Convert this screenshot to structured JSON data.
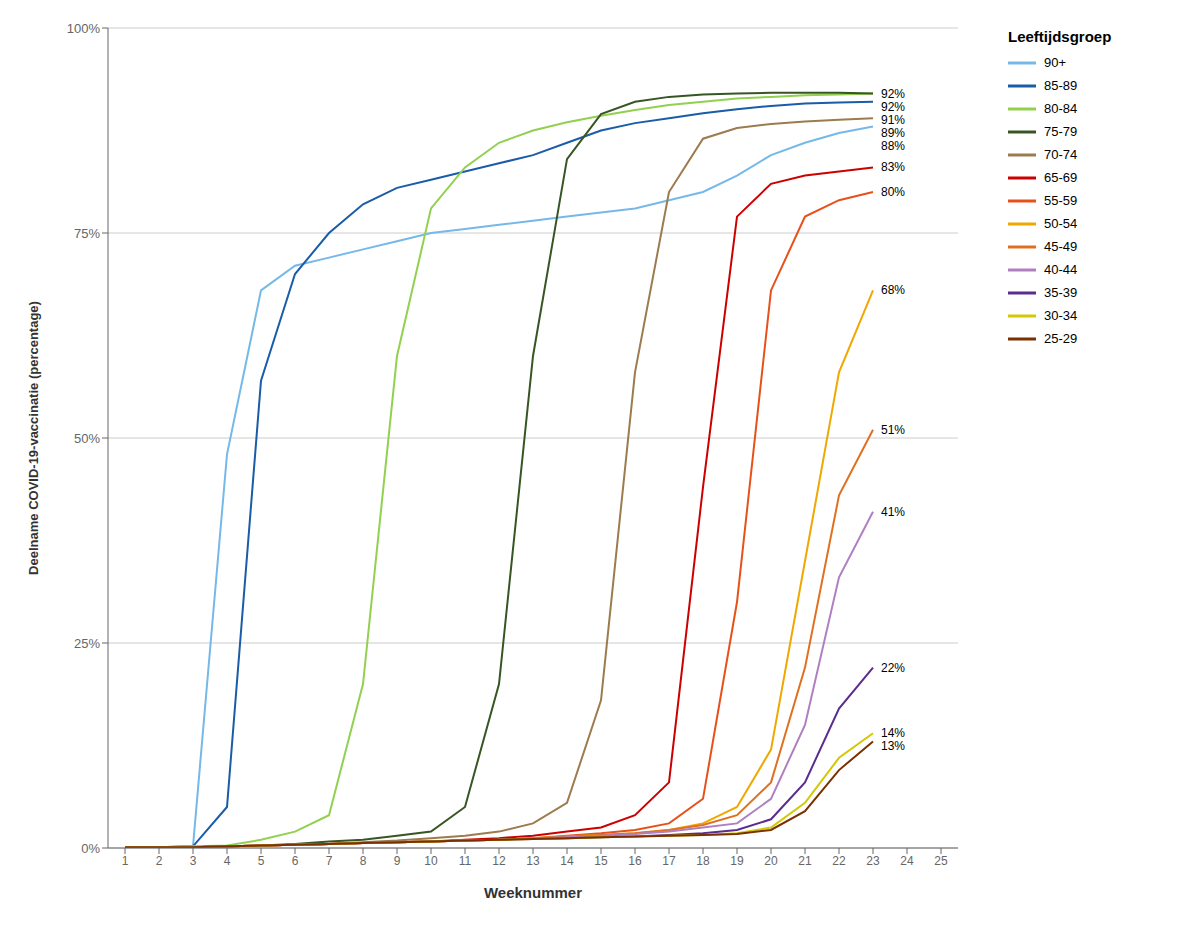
{
  "chart_data": {
    "type": "line",
    "x_label": "Weeknummer",
    "y_label": "Deelname COVID-19-vaccinatie (percentage)",
    "legend_title": "Leeftijdsgroep",
    "legend": "right",
    "grid": true,
    "xlim": [
      0.5,
      25.5
    ],
    "xticks": [
      1,
      2,
      3,
      4,
      5,
      6,
      7,
      8,
      9,
      10,
      11,
      12,
      13,
      14,
      15,
      16,
      17,
      18,
      19,
      20,
      21,
      22,
      23,
      24,
      25
    ],
    "ylim": [
      0,
      1.0
    ],
    "yticks": [
      {
        "value": 0,
        "label": "0%"
      },
      {
        "value": 0.25,
        "label": "25%"
      },
      {
        "value": 0.5,
        "label": "50%"
      },
      {
        "value": 0.75,
        "label": "75%"
      },
      {
        "value": 1.0,
        "label": "100%"
      }
    ],
    "x": [
      1,
      2,
      3,
      4,
      5,
      6,
      7,
      8,
      9,
      10,
      11,
      12,
      13,
      14,
      15,
      16,
      17,
      18,
      19,
      20,
      21,
      22,
      23
    ],
    "series": [
      {
        "name": "90+",
        "color": "#74B9E8",
        "values": [
          0.001,
          0.001,
          0.002,
          0.48,
          0.68,
          0.71,
          0.72,
          0.73,
          0.74,
          0.75,
          0.755,
          0.76,
          0.765,
          0.77,
          0.775,
          0.78,
          0.79,
          0.8,
          0.82,
          0.845,
          0.86,
          0.872,
          0.88
        ]
      },
      {
        "name": "85-89",
        "color": "#1A5CA8",
        "values": [
          0.001,
          0.001,
          0.002,
          0.05,
          0.57,
          0.7,
          0.75,
          0.785,
          0.805,
          0.815,
          0.825,
          0.835,
          0.845,
          0.86,
          0.875,
          0.884,
          0.89,
          0.896,
          0.901,
          0.905,
          0.908,
          0.909,
          0.91
        ]
      },
      {
        "name": "80-84",
        "color": "#92D050",
        "values": [
          0.001,
          0.001,
          0.002,
          0.003,
          0.01,
          0.02,
          0.04,
          0.2,
          0.6,
          0.78,
          0.83,
          0.86,
          0.875,
          0.885,
          0.893,
          0.9,
          0.906,
          0.91,
          0.914,
          0.916,
          0.918,
          0.919,
          0.92
        ]
      },
      {
        "name": "75-79",
        "color": "#375623",
        "values": [
          0.001,
          0.001,
          0.001,
          0.002,
          0.003,
          0.005,
          0.008,
          0.01,
          0.015,
          0.02,
          0.05,
          0.2,
          0.6,
          0.84,
          0.895,
          0.91,
          0.916,
          0.919,
          0.92,
          0.921,
          0.921,
          0.921,
          0.92
        ]
      },
      {
        "name": "70-74",
        "color": "#9C7B4E",
        "values": [
          0.001,
          0.001,
          0.001,
          0.002,
          0.003,
          0.004,
          0.005,
          0.007,
          0.009,
          0.012,
          0.015,
          0.02,
          0.03,
          0.055,
          0.18,
          0.58,
          0.8,
          0.865,
          0.878,
          0.883,
          0.886,
          0.888,
          0.89
        ]
      },
      {
        "name": "65-69",
        "color": "#CC0000",
        "values": [
          0.001,
          0.001,
          0.001,
          0.002,
          0.003,
          0.004,
          0.005,
          0.006,
          0.007,
          0.008,
          0.01,
          0.012,
          0.015,
          0.02,
          0.025,
          0.04,
          0.08,
          0.44,
          0.77,
          0.81,
          0.82,
          0.825,
          0.83
        ]
      },
      {
        "name": "55-59",
        "color": "#E8501A",
        "values": [
          0.001,
          0.001,
          0.001,
          0.002,
          0.003,
          0.004,
          0.005,
          0.006,
          0.007,
          0.008,
          0.009,
          0.01,
          0.012,
          0.015,
          0.018,
          0.022,
          0.03,
          0.06,
          0.3,
          0.68,
          0.77,
          0.79,
          0.8
        ]
      },
      {
        "name": "50-54",
        "color": "#F0A800",
        "values": [
          0.001,
          0.001,
          0.001,
          0.002,
          0.003,
          0.004,
          0.005,
          0.006,
          0.007,
          0.008,
          0.009,
          0.01,
          0.012,
          0.014,
          0.016,
          0.018,
          0.022,
          0.03,
          0.05,
          0.12,
          0.35,
          0.58,
          0.68
        ]
      },
      {
        "name": "45-49",
        "color": "#E07020",
        "values": [
          0.001,
          0.001,
          0.001,
          0.002,
          0.003,
          0.004,
          0.005,
          0.006,
          0.007,
          0.008,
          0.009,
          0.01,
          0.012,
          0.014,
          0.016,
          0.018,
          0.022,
          0.028,
          0.04,
          0.08,
          0.22,
          0.43,
          0.51
        ]
      },
      {
        "name": "40-44",
        "color": "#B07FC0",
        "values": [
          0.001,
          0.001,
          0.001,
          0.002,
          0.003,
          0.004,
          0.005,
          0.006,
          0.007,
          0.008,
          0.009,
          0.01,
          0.012,
          0.013,
          0.015,
          0.017,
          0.02,
          0.025,
          0.03,
          0.06,
          0.15,
          0.33,
          0.41
        ]
      },
      {
        "name": "35-39",
        "color": "#5B2C8D",
        "values": [
          0.001,
          0.001,
          0.001,
          0.002,
          0.003,
          0.004,
          0.005,
          0.006,
          0.007,
          0.008,
          0.009,
          0.01,
          0.011,
          0.012,
          0.013,
          0.014,
          0.016,
          0.018,
          0.022,
          0.035,
          0.08,
          0.17,
          0.22
        ]
      },
      {
        "name": "30-34",
        "color": "#D4C800",
        "values": [
          0.001,
          0.001,
          0.001,
          0.002,
          0.003,
          0.004,
          0.005,
          0.006,
          0.007,
          0.008,
          0.009,
          0.01,
          0.011,
          0.012,
          0.013,
          0.014,
          0.015,
          0.016,
          0.018,
          0.025,
          0.055,
          0.11,
          0.14
        ]
      },
      {
        "name": "25-29",
        "color": "#7B3000",
        "values": [
          0.001,
          0.001,
          0.001,
          0.002,
          0.003,
          0.004,
          0.005,
          0.006,
          0.007,
          0.008,
          0.009,
          0.01,
          0.011,
          0.012,
          0.013,
          0.014,
          0.015,
          0.016,
          0.017,
          0.022,
          0.045,
          0.095,
          0.13
        ]
      }
    ],
    "annotations": [
      {
        "x": 23,
        "y": 0.88,
        "text": "88%"
      },
      {
        "x": 23,
        "y": 0.91,
        "text": "91%"
      },
      {
        "x": 23,
        "y": 0.92,
        "text": "92%"
      },
      {
        "x": 23,
        "y": 0.92,
        "text": "92%"
      },
      {
        "x": 23,
        "y": 0.89,
        "text": "89%"
      },
      {
        "x": 23,
        "y": 0.83,
        "text": "83%"
      },
      {
        "x": 23,
        "y": 0.8,
        "text": "80%"
      },
      {
        "x": 23,
        "y": 0.68,
        "text": "68%"
      },
      {
        "x": 23,
        "y": 0.51,
        "text": "51%"
      },
      {
        "x": 23,
        "y": 0.41,
        "text": "41%"
      },
      {
        "x": 23,
        "y": 0.22,
        "text": "22%"
      },
      {
        "x": 23,
        "y": 0.14,
        "text": "14%"
      },
      {
        "x": 23,
        "y": 0.13,
        "text": "13%"
      }
    ]
  }
}
